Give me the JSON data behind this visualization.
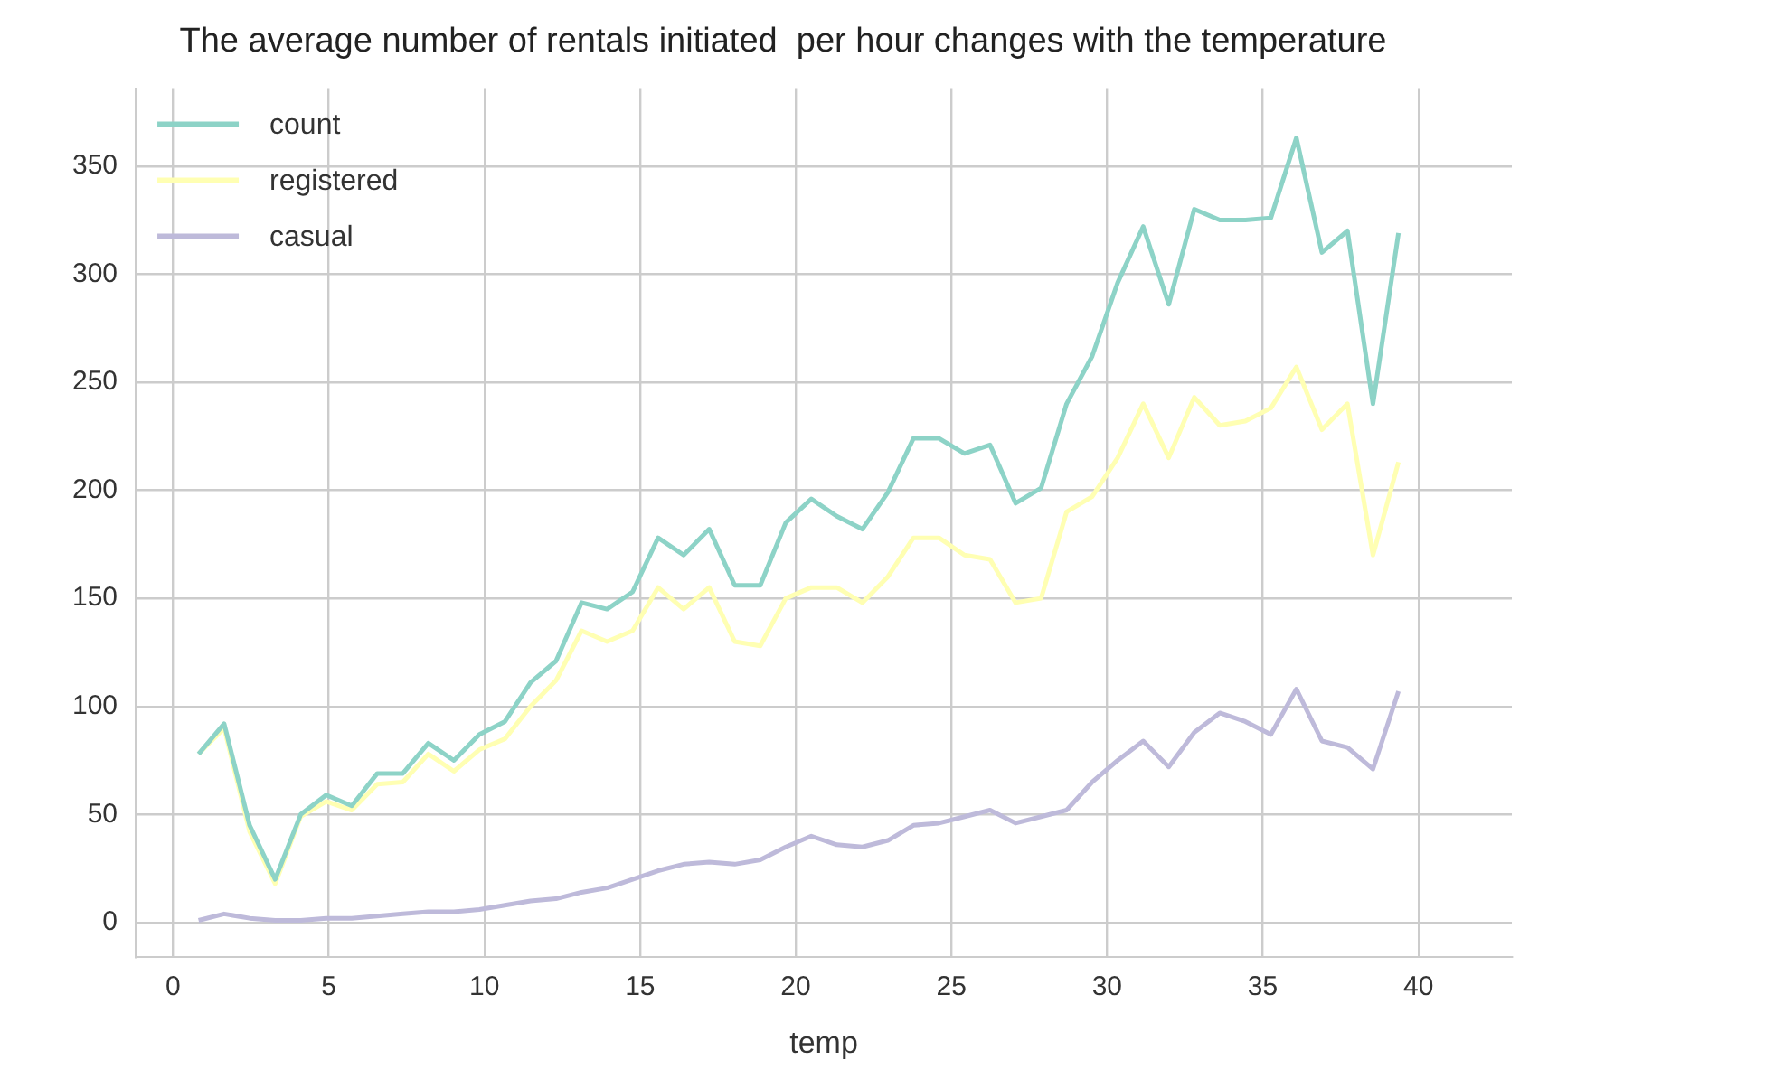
{
  "chart_data": {
    "type": "line",
    "title": "The average number of rentals initiated  per hour changes with the temperature",
    "xlabel": "temp",
    "x": [
      0.82,
      1.64,
      2.46,
      3.28,
      4.1,
      4.92,
      5.74,
      6.56,
      7.38,
      8.2,
      9.02,
      9.84,
      10.66,
      11.48,
      12.3,
      13.12,
      13.94,
      14.76,
      15.58,
      16.4,
      17.22,
      18.04,
      18.86,
      19.68,
      20.5,
      21.32,
      22.14,
      22.96,
      23.78,
      24.6,
      25.42,
      26.24,
      27.06,
      27.88,
      28.7,
      29.52,
      30.34,
      31.16,
      31.98,
      32.8,
      33.62,
      34.44,
      35.26,
      36.08,
      36.9,
      37.72,
      38.54,
      39.36
    ],
    "series": [
      {
        "name": "count",
        "color": "#8dd3c7",
        "values": [
          78,
          92,
          45,
          20,
          50,
          59,
          54,
          69,
          69,
          83,
          75,
          87,
          93,
          111,
          121,
          148,
          145,
          153,
          178,
          170,
          182,
          156,
          156,
          185,
          196,
          188,
          182,
          199,
          224,
          224,
          217,
          221,
          194,
          201,
          240,
          262,
          296,
          322,
          286,
          330,
          325,
          325,
          326,
          363,
          310,
          320,
          240,
          319
        ]
      },
      {
        "name": "registered",
        "color": "#ffffb3",
        "values": [
          78,
          90,
          42,
          18,
          49,
          56,
          52,
          64,
          65,
          78,
          70,
          80,
          85,
          100,
          112,
          135,
          130,
          135,
          155,
          145,
          155,
          130,
          128,
          150,
          155,
          155,
          148,
          160,
          178,
          178,
          170,
          168,
          148,
          150,
          190,
          197,
          215,
          240,
          215,
          243,
          230,
          232,
          238,
          257,
          228,
          240,
          170,
          213
        ]
      },
      {
        "name": "casual",
        "color": "#bebada",
        "values": [
          1,
          4,
          2,
          1,
          1,
          2,
          2,
          3,
          4,
          5,
          5,
          6,
          8,
          10,
          11,
          14,
          16,
          20,
          24,
          27,
          28,
          27,
          29,
          35,
          40,
          36,
          35,
          38,
          45,
          46,
          49,
          52,
          46,
          49,
          52,
          65,
          75,
          84,
          72,
          88,
          97,
          93,
          87,
          108,
          84,
          81,
          71,
          107
        ]
      }
    ],
    "xlim": [
      -1.2,
      43
    ],
    "xticks": [
      0,
      5,
      10,
      15,
      20,
      25,
      30,
      35,
      40
    ],
    "ylim": [
      -16,
      386
    ],
    "yticks": [
      0,
      50,
      100,
      150,
      200,
      250,
      300,
      350
    ],
    "grid": true,
    "legend": "top left",
    "marker": "none",
    "line_style": "solid"
  }
}
